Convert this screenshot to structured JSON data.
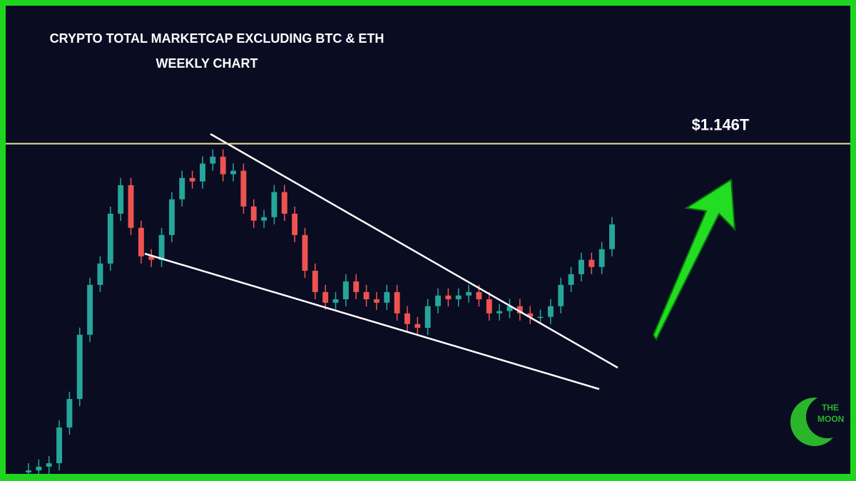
{
  "chart_data": {
    "type": "candlestick",
    "title": "CRYPTO TOTAL MARKETCAP EXCLUDING BTC & ETH",
    "subtitle": "WEEKLY CHART",
    "level": {
      "value": 1.146,
      "label": "$1.146T"
    },
    "level_color": "#e8e29a",
    "up_color": "#26a69a",
    "down_color": "#ef5350",
    "ylim": [
      0,
      1.62
    ],
    "open": [
      0.005,
      0.012,
      0.025,
      0.037,
      0.161,
      0.26,
      0.483,
      0.656,
      0.73,
      0.903,
      1.002,
      0.854,
      0.755,
      0.743,
      0.829,
      0.953,
      1.027,
      1.015,
      1.077,
      1.101,
      1.04,
      1.052,
      0.928,
      0.879,
      0.891,
      0.978,
      0.903,
      0.829,
      0.705,
      0.631,
      0.594,
      0.606,
      0.668,
      0.631,
      0.606,
      0.594,
      0.631,
      0.557,
      0.52,
      0.507,
      0.582,
      0.619,
      0.606,
      0.619,
      0.631,
      0.606,
      0.557,
      0.565,
      0.582,
      0.557,
      0.545,
      0.545,
      0.582,
      0.656,
      0.693,
      0.743,
      0.718,
      0.78
    ],
    "high": [
      0.037,
      0.05,
      0.062,
      0.186,
      0.285,
      0.508,
      0.681,
      0.755,
      0.928,
      1.027,
      1.027,
      0.879,
      0.78,
      0.854,
      0.978,
      1.052,
      1.052,
      1.102,
      1.126,
      1.126,
      1.077,
      1.077,
      0.953,
      0.916,
      1.003,
      1.003,
      0.928,
      0.854,
      0.73,
      0.656,
      0.631,
      0.693,
      0.693,
      0.656,
      0.631,
      0.656,
      0.656,
      0.582,
      0.545,
      0.607,
      0.644,
      0.644,
      0.644,
      0.656,
      0.656,
      0.631,
      0.59,
      0.607,
      0.607,
      0.582,
      0.57,
      0.607,
      0.681,
      0.718,
      0.768,
      0.768,
      0.805,
      0.891
    ],
    "low": [
      0.0,
      0.0,
      0.0,
      0.012,
      0.136,
      0.235,
      0.458,
      0.631,
      0.705,
      0.878,
      0.829,
      0.73,
      0.718,
      0.718,
      0.804,
      0.928,
      0.99,
      0.99,
      1.052,
      1.015,
      1.015,
      0.903,
      0.854,
      0.854,
      0.866,
      0.878,
      0.804,
      0.68,
      0.606,
      0.569,
      0.569,
      0.581,
      0.606,
      0.581,
      0.569,
      0.569,
      0.532,
      0.495,
      0.482,
      0.482,
      0.557,
      0.581,
      0.581,
      0.594,
      0.581,
      0.532,
      0.532,
      0.54,
      0.532,
      0.52,
      0.52,
      0.52,
      0.557,
      0.631,
      0.668,
      0.693,
      0.693,
      0.755
    ],
    "close": [
      0.012,
      0.025,
      0.037,
      0.161,
      0.26,
      0.483,
      0.656,
      0.73,
      0.903,
      1.002,
      0.854,
      0.755,
      0.743,
      0.829,
      0.953,
      1.027,
      1.015,
      1.077,
      1.101,
      1.04,
      1.052,
      0.928,
      0.879,
      0.891,
      0.978,
      0.903,
      0.829,
      0.705,
      0.631,
      0.594,
      0.606,
      0.668,
      0.631,
      0.606,
      0.594,
      0.631,
      0.557,
      0.52,
      0.507,
      0.582,
      0.619,
      0.606,
      0.619,
      0.631,
      0.606,
      0.557,
      0.565,
      0.582,
      0.557,
      0.545,
      0.545,
      0.582,
      0.656,
      0.693,
      0.743,
      0.718,
      0.78,
      0.866
    ],
    "logo": [
      "THE",
      "MOON"
    ]
  }
}
